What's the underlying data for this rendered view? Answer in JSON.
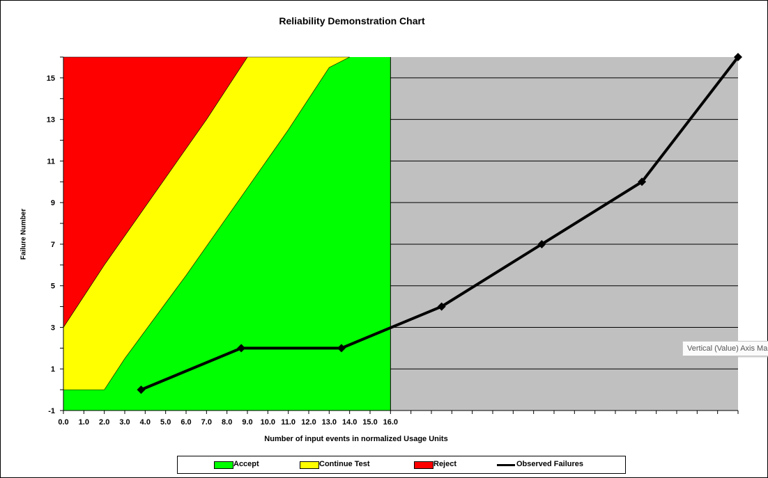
{
  "chart_data": {
    "type": "area",
    "title": "Reliability Demonstration Chart",
    "xlabel": "Number of input events in normalized Usage Units",
    "ylabel": "Failure Number",
    "ylim": [
      -1,
      16
    ],
    "y_ticks": [
      -1,
      1,
      3,
      5,
      7,
      9,
      11,
      13,
      15
    ],
    "x_tick_labels": [
      "0.0",
      "1.0",
      "2.0",
      "3.0",
      "4.0",
      "5.0",
      "6.0",
      "7.0",
      "8.0",
      "9.0",
      "10.0",
      "11.0",
      "12.0",
      "13.0",
      "14.0",
      "15.0",
      "16.0"
    ],
    "xlim": [
      0,
      33
    ],
    "regions": [
      {
        "name": "Accept",
        "color": "#00ff00"
      },
      {
        "name": "Continue Test",
        "color": "#ffff00"
      },
      {
        "name": "Reject",
        "color": "#ff0000"
      }
    ],
    "reject_boundary": {
      "x": [
        0,
        2,
        7,
        9
      ],
      "y": [
        3,
        6,
        13,
        16
      ]
    },
    "accept_boundary": {
      "x": [
        0,
        2,
        3,
        6,
        11,
        13,
        14
      ],
      "y": [
        0,
        0,
        1.5,
        5.5,
        12.5,
        15.5,
        16
      ]
    },
    "test_limit_x": 16,
    "beyond_test_color": "#c0c0c0",
    "series": [
      {
        "name": "Observed Failures",
        "color": "#000000",
        "x": [
          3.8,
          8.7,
          13.6,
          18.5,
          23.4,
          28.3,
          33.0
        ],
        "y": [
          0,
          2,
          2,
          4,
          7,
          10,
          16
        ]
      }
    ],
    "legend_position": "bottom",
    "grid": "horizontal"
  },
  "tooltip": "Vertical (Value) Axis Ma"
}
